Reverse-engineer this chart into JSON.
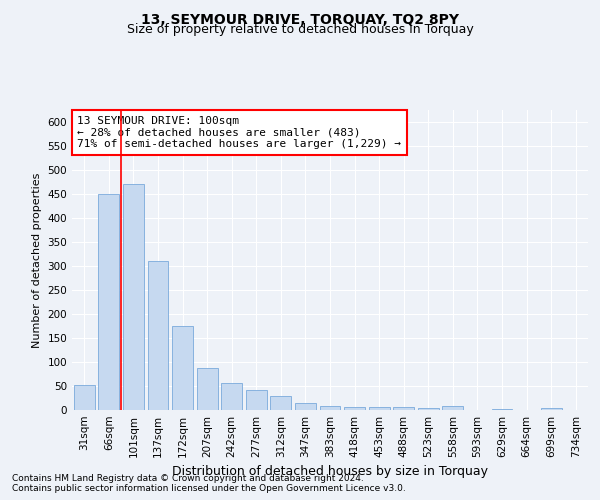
{
  "title": "13, SEYMOUR DRIVE, TORQUAY, TQ2 8PY",
  "subtitle": "Size of property relative to detached houses in Torquay",
  "xlabel": "Distribution of detached houses by size in Torquay",
  "ylabel": "Number of detached properties",
  "categories": [
    "31sqm",
    "66sqm",
    "101sqm",
    "137sqm",
    "172sqm",
    "207sqm",
    "242sqm",
    "277sqm",
    "312sqm",
    "347sqm",
    "383sqm",
    "418sqm",
    "453sqm",
    "488sqm",
    "523sqm",
    "558sqm",
    "593sqm",
    "629sqm",
    "664sqm",
    "699sqm",
    "734sqm"
  ],
  "values": [
    52,
    450,
    470,
    311,
    175,
    88,
    57,
    42,
    30,
    14,
    9,
    7,
    7,
    6,
    5,
    8,
    0,
    3,
    0,
    4,
    0
  ],
  "bar_color": "#c6d9f0",
  "bar_edge_color": "#7aaadc",
  "red_line_x": 1.5,
  "annotation_line1": "13 SEYMOUR DRIVE: 100sqm",
  "annotation_line2": "← 28% of detached houses are smaller (483)",
  "annotation_line3": "71% of semi-detached houses are larger (1,229) →",
  "annotation_box_color": "white",
  "annotation_box_edge_color": "red",
  "ylim": [
    0,
    625
  ],
  "yticks": [
    0,
    50,
    100,
    150,
    200,
    250,
    300,
    350,
    400,
    450,
    500,
    550,
    600
  ],
  "footnote1": "Contains HM Land Registry data © Crown copyright and database right 2024.",
  "footnote2": "Contains public sector information licensed under the Open Government Licence v3.0.",
  "background_color": "#eef2f8",
  "grid_color": "white",
  "title_fontsize": 10,
  "subtitle_fontsize": 9,
  "ylabel_fontsize": 8,
  "xlabel_fontsize": 9,
  "tick_fontsize": 7.5,
  "annotation_fontsize": 8,
  "footnote_fontsize": 6.5
}
